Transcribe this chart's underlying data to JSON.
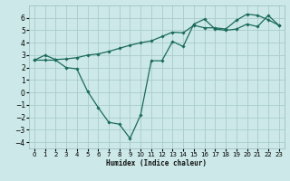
{
  "xlabel": "Humidex (Indice chaleur)",
  "background_color": "#cce8e8",
  "grid_color": "#aacccc",
  "line_color": "#1a6b5a",
  "xlim": [
    -0.5,
    23.5
  ],
  "ylim": [
    -4.5,
    7.0
  ],
  "xticks": [
    0,
    1,
    2,
    3,
    4,
    5,
    6,
    7,
    8,
    9,
    10,
    11,
    12,
    13,
    14,
    15,
    16,
    17,
    18,
    19,
    20,
    21,
    22,
    23
  ],
  "yticks": [
    -4,
    -3,
    -2,
    -1,
    0,
    1,
    2,
    3,
    4,
    5,
    6
  ],
  "line1_x": [
    0,
    1,
    2,
    3,
    4,
    5,
    6,
    7,
    8,
    9,
    10,
    11,
    12,
    13,
    14,
    15,
    16,
    17,
    18,
    19,
    20,
    21,
    22,
    23
  ],
  "line1_y": [
    2.6,
    3.0,
    2.65,
    2.7,
    2.8,
    3.0,
    3.1,
    3.3,
    3.55,
    3.8,
    4.0,
    4.15,
    4.5,
    4.85,
    4.8,
    5.4,
    5.2,
    5.2,
    5.1,
    5.8,
    6.3,
    6.2,
    5.85,
    5.4
  ],
  "line2_x": [
    0,
    1,
    2,
    3,
    4,
    5,
    6,
    7,
    8,
    9,
    10,
    11,
    12,
    13,
    14,
    15,
    16,
    17,
    18,
    19,
    20,
    21,
    22,
    23
  ],
  "line2_y": [
    2.6,
    2.6,
    2.6,
    2.0,
    1.9,
    0.1,
    -1.2,
    -2.4,
    -2.55,
    -3.7,
    -1.8,
    2.55,
    2.55,
    4.1,
    3.7,
    5.5,
    5.9,
    5.1,
    5.0,
    5.1,
    5.5,
    5.3,
    6.2,
    5.4
  ],
  "xlabel_fontsize": 5.5,
  "tick_fontsize": 5.0
}
